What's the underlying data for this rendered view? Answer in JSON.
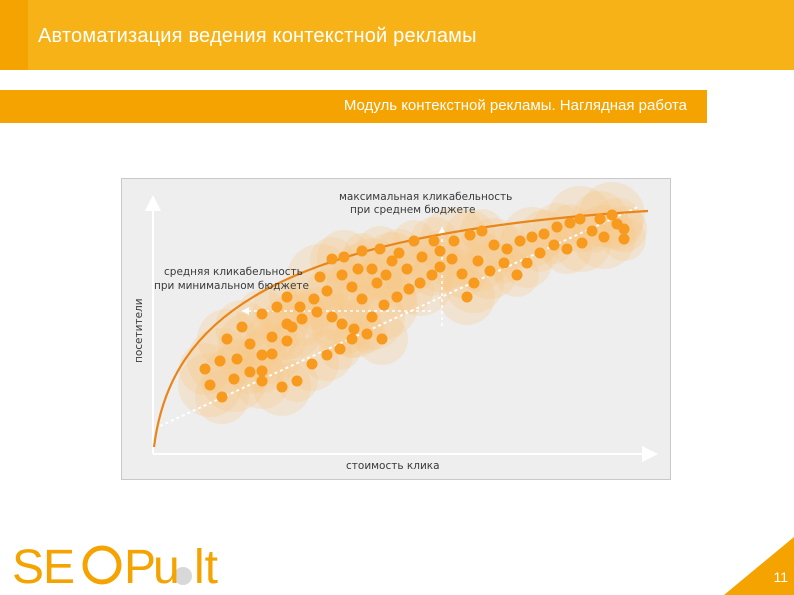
{
  "header": {
    "title": "Автоматизация ведения контекстной рекламы",
    "color": "#f4a300"
  },
  "subtitle": {
    "text": "Модуль контекстной рекламы. Наглядная работа"
  },
  "diagram": {
    "annotations": {
      "max_line1": "максимальная кликабельность",
      "max_line2": "при среднем бюджете",
      "avg_line1": "средняя кликабельность",
      "avg_line2": "при минимальном бюджете"
    },
    "y_axis_label": "посетители",
    "x_axis_label": "стоимость клика",
    "colors": {
      "dot": "#f79a1e",
      "halo": "#f8c98a",
      "curve": "#e8861a",
      "background": "#eeeeee"
    }
  },
  "logo": {
    "brand": "SEOPult",
    "color": "#f4a300"
  },
  "page": {
    "number": "11"
  }
}
